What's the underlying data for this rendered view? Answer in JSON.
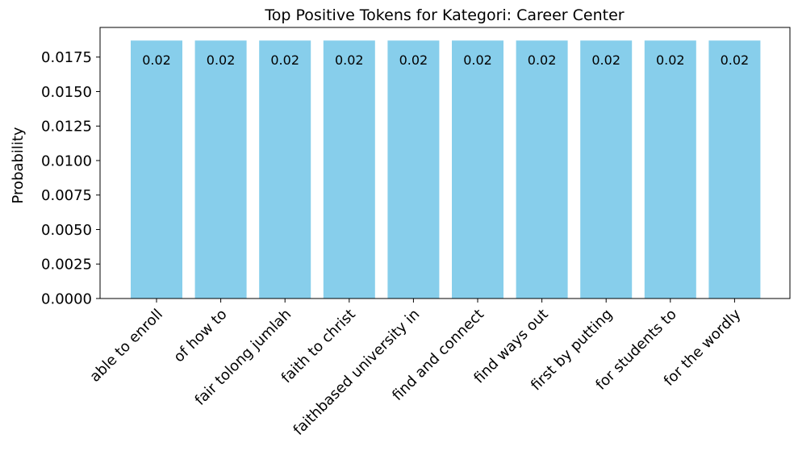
{
  "chart_data": {
    "type": "bar",
    "title": "Top Positive Tokens for Kategori: Career Center",
    "xlabel": "",
    "ylabel": "Probability",
    "categories": [
      "able to enroll",
      "of how to",
      "fair tolong jumlah",
      "faith to christ",
      "faithbased university in",
      "find and connect",
      "find ways out",
      "first by putting",
      "for students to",
      "for the wordly"
    ],
    "values": [
      0.0187,
      0.0187,
      0.0187,
      0.0187,
      0.0187,
      0.0187,
      0.0187,
      0.0187,
      0.0187,
      0.0187
    ],
    "data_labels": [
      "0.02",
      "0.02",
      "0.02",
      "0.02",
      "0.02",
      "0.02",
      "0.02",
      "0.02",
      "0.02",
      "0.02"
    ],
    "yticks": [
      "0.0000",
      "0.0025",
      "0.0050",
      "0.0075",
      "0.0100",
      "0.0125",
      "0.0150",
      "0.0175"
    ],
    "ylim": [
      0,
      0.01965
    ],
    "grid": false,
    "bar_color": "#87ceeb"
  }
}
